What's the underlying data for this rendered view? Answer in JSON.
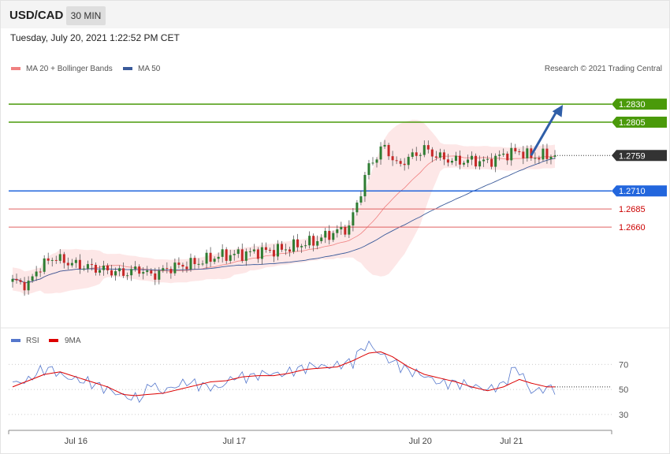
{
  "header": {
    "symbol": "USD/CAD",
    "timeframe": "30 MIN",
    "datetime": "Tuesday, July 20, 2021 1:22:52 PM CET"
  },
  "legend": {
    "ma20": {
      "label": "MA 20 + Bollinger Bands",
      "color": "#f08080"
    },
    "ma50": {
      "label": "MA 50",
      "color": "#3a5a9a"
    },
    "credit": "Research © 2021 Trading Central"
  },
  "rsi_legend": {
    "rsi": {
      "label": "RSI",
      "color": "#5577cc"
    },
    "ma9": {
      "label": "9MA",
      "color": "#dd0000"
    }
  },
  "chart_data": [
    {
      "type": "candlestick",
      "ylim": [
        1.2525,
        1.2865
      ],
      "x": {
        "count": 138,
        "tick_labels": [
          {
            "label": "Jul 16",
            "index": 16
          },
          {
            "label": "Jul 17",
            "index": 56
          },
          {
            "label": "Jul 20",
            "index": 103
          },
          {
            "label": "Jul 21",
            "index": 126
          }
        ]
      },
      "colors": {
        "up": "#2e7d32",
        "down": "#c62828"
      },
      "close_anchors": [
        [
          0,
          1.2585
        ],
        [
          4,
          1.258
        ],
        [
          6,
          1.26
        ],
        [
          10,
          1.2618
        ],
        [
          16,
          1.2608
        ],
        [
          24,
          1.26
        ],
        [
          28,
          1.2596
        ],
        [
          32,
          1.2602
        ],
        [
          35,
          1.2593
        ],
        [
          40,
          1.2604
        ],
        [
          46,
          1.261
        ],
        [
          52,
          1.262
        ],
        [
          58,
          1.2623
        ],
        [
          62,
          1.2626
        ],
        [
          68,
          1.2629
        ],
        [
          72,
          1.2635
        ],
        [
          76,
          1.264
        ],
        [
          80,
          1.265
        ],
        [
          85,
          1.266
        ],
        [
          88,
          1.271
        ],
        [
          90,
          1.2745
        ],
        [
          94,
          1.2772
        ],
        [
          97,
          1.2745
        ],
        [
          100,
          1.2755
        ],
        [
          104,
          1.2768
        ],
        [
          108,
          1.2756
        ],
        [
          112,
          1.2751
        ],
        [
          116,
          1.2752
        ],
        [
          120,
          1.275
        ],
        [
          124,
          1.276
        ],
        [
          128,
          1.2765
        ],
        [
          131,
          1.2757
        ],
        [
          135,
          1.2759
        ]
      ],
      "levels": [
        {
          "label": "1.2830",
          "value": 1.283,
          "kind": "resistance",
          "color": "#4a9a0a",
          "tag": true
        },
        {
          "label": "1.2805",
          "value": 1.2805,
          "kind": "resistance",
          "color": "#4a9a0a",
          "tag": true
        },
        {
          "label": "1.2759",
          "value": 1.2759,
          "kind": "last",
          "color": "#333333",
          "tag": true
        },
        {
          "label": "1.2710",
          "value": 1.271,
          "kind": "pivot",
          "color": "#2266dd",
          "tag": true
        },
        {
          "label": "1.2685",
          "value": 1.2685,
          "kind": "support",
          "color": "#e06060",
          "tag": false
        },
        {
          "label": "1.2660",
          "value": 1.266,
          "kind": "support",
          "color": "#e06060",
          "tag": false
        }
      ],
      "projection": {
        "from": [
          131,
          1.2759
        ],
        "to": [
          139,
          1.2829
        ],
        "color": "#2f5ea8"
      }
    },
    {
      "type": "line",
      "ylim": [
        18,
        84
      ],
      "hlines": [
        {
          "label": "70",
          "value": 70
        },
        {
          "label": "50",
          "value": 50
        },
        {
          "label": "30",
          "value": 30
        }
      ],
      "rsi_anchors": [
        [
          0,
          55
        ],
        [
          4,
          57
        ],
        [
          6,
          63
        ],
        [
          8,
          66
        ],
        [
          10,
          66
        ],
        [
          13,
          60
        ],
        [
          16,
          58
        ],
        [
          20,
          55
        ],
        [
          24,
          50
        ],
        [
          27,
          46
        ],
        [
          30,
          43
        ],
        [
          33,
          44
        ],
        [
          35,
          57
        ],
        [
          37,
          48
        ],
        [
          40,
          51
        ],
        [
          44,
          56
        ],
        [
          48,
          53
        ],
        [
          52,
          51
        ],
        [
          56,
          60
        ],
        [
          60,
          60
        ],
        [
          64,
          63
        ],
        [
          68,
          62
        ],
        [
          72,
          66
        ],
        [
          76,
          69
        ],
        [
          80,
          68
        ],
        [
          83,
          70
        ],
        [
          86,
          72
        ],
        [
          88,
          82
        ],
        [
          90,
          86
        ],
        [
          93,
          78
        ],
        [
          96,
          72
        ],
        [
          100,
          65
        ],
        [
          104,
          61
        ],
        [
          108,
          55
        ],
        [
          112,
          55
        ],
        [
          116,
          53
        ],
        [
          120,
          50
        ],
        [
          124,
          54
        ],
        [
          127,
          68
        ],
        [
          129,
          60
        ],
        [
          131,
          48
        ],
        [
          135,
          51
        ]
      ],
      "ma9_anchors": [
        [
          0,
          52
        ],
        [
          4,
          57
        ],
        [
          8,
          62
        ],
        [
          12,
          64
        ],
        [
          16,
          60
        ],
        [
          20,
          56
        ],
        [
          24,
          52
        ],
        [
          28,
          46
        ],
        [
          31,
          45
        ],
        [
          34,
          46
        ],
        [
          38,
          47
        ],
        [
          42,
          50
        ],
        [
          46,
          53
        ],
        [
          50,
          56
        ],
        [
          54,
          57
        ],
        [
          58,
          60
        ],
        [
          62,
          61
        ],
        [
          66,
          61
        ],
        [
          70,
          63
        ],
        [
          74,
          66
        ],
        [
          78,
          67
        ],
        [
          82,
          68
        ],
        [
          86,
          73
        ],
        [
          90,
          79
        ],
        [
          93,
          80
        ],
        [
          96,
          76
        ],
        [
          100,
          68
        ],
        [
          104,
          62
        ],
        [
          108,
          59
        ],
        [
          112,
          56
        ],
        [
          116,
          52
        ],
        [
          120,
          49
        ],
        [
          124,
          52
        ],
        [
          128,
          58
        ],
        [
          131,
          55
        ],
        [
          135,
          52
        ]
      ],
      "tag": "50"
    }
  ]
}
